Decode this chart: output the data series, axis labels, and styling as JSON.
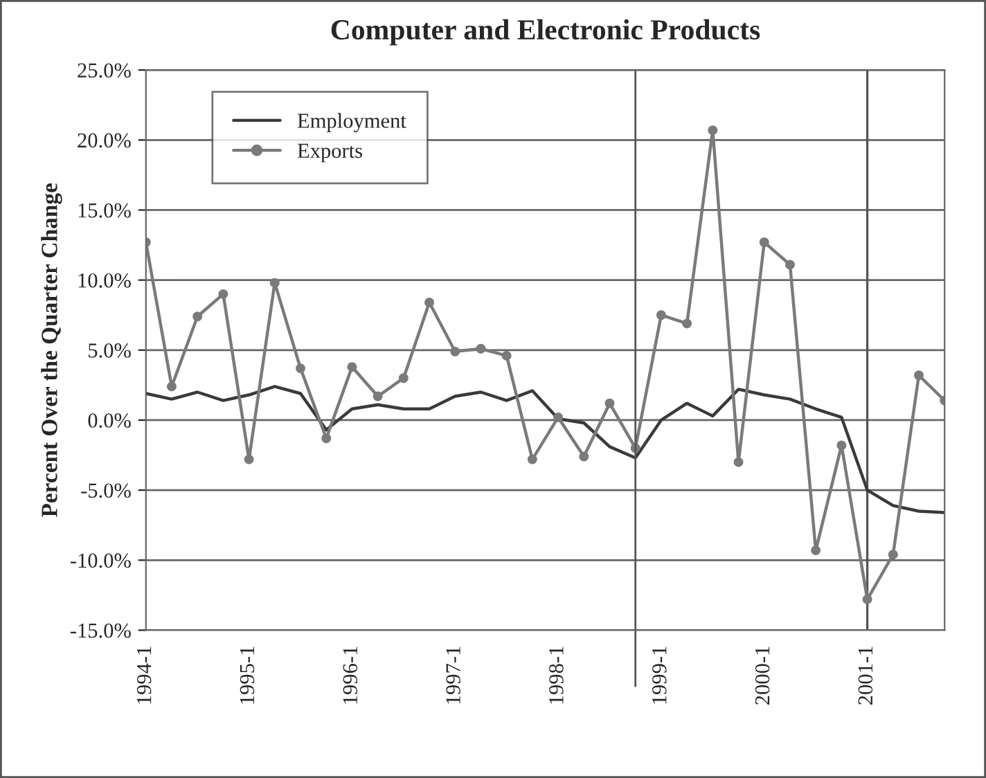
{
  "chart_data": {
    "type": "line",
    "title": "Computer and Electronic Products",
    "ylabel": "Percent Over the Quarter Change",
    "categories": [
      "1994-1",
      null,
      null,
      null,
      "1995-1",
      null,
      null,
      null,
      "1996-1",
      null,
      null,
      null,
      "1997-1",
      null,
      null,
      null,
      "1998-1",
      null,
      null,
      null,
      "1999-1",
      null,
      null,
      null,
      "2000-1",
      null,
      null,
      null,
      "2001-1",
      null,
      null,
      null
    ],
    "series": [
      {
        "name": "Employment",
        "color": "#3a3a3a",
        "marker": "none",
        "values": [
          1.9,
          1.5,
          2.0,
          1.4,
          1.8,
          2.4,
          1.9,
          -0.7,
          0.8,
          1.1,
          0.8,
          0.8,
          1.7,
          2.0,
          1.4,
          2.1,
          0.1,
          -0.2,
          -1.9,
          -2.7,
          0.0,
          1.2,
          0.3,
          2.2,
          1.8,
          1.5,
          0.8,
          0.2,
          -5.0,
          -6.1,
          -6.5,
          -6.6
        ]
      },
      {
        "name": "Exports",
        "color": "#7a7a7a",
        "marker": "circle",
        "values": [
          12.7,
          2.4,
          7.4,
          9.0,
          -2.8,
          9.8,
          3.7,
          -1.3,
          3.8,
          1.7,
          3.0,
          8.4,
          4.9,
          5.1,
          4.6,
          -2.8,
          0.2,
          -2.6,
          1.2,
          -2.0,
          7.5,
          6.9,
          20.7,
          -3.0,
          12.7,
          11.1,
          -9.3,
          -1.8,
          -12.8,
          -9.6,
          3.2,
          1.4
        ]
      }
    ],
    "ylim": [
      -15,
      25
    ],
    "yticks": [
      {
        "value": -15,
        "label": "-15.0%"
      },
      {
        "value": -10,
        "label": "-10.0%"
      },
      {
        "value": -5,
        "label": "-5.0%"
      },
      {
        "value": 0,
        "label": "0.0%"
      },
      {
        "value": 5,
        "label": "5.0%"
      },
      {
        "value": 10,
        "label": "10.0%"
      },
      {
        "value": 15,
        "label": "15.0%"
      },
      {
        "value": 20,
        "label": "20.0%"
      },
      {
        "value": 25,
        "label": "25.0%"
      }
    ],
    "ref_lines": [
      {
        "axis": "x",
        "value": "2001-1",
        "color": "#555555"
      }
    ],
    "grid": "y",
    "legend": "top left",
    "line_style": "solid"
  }
}
